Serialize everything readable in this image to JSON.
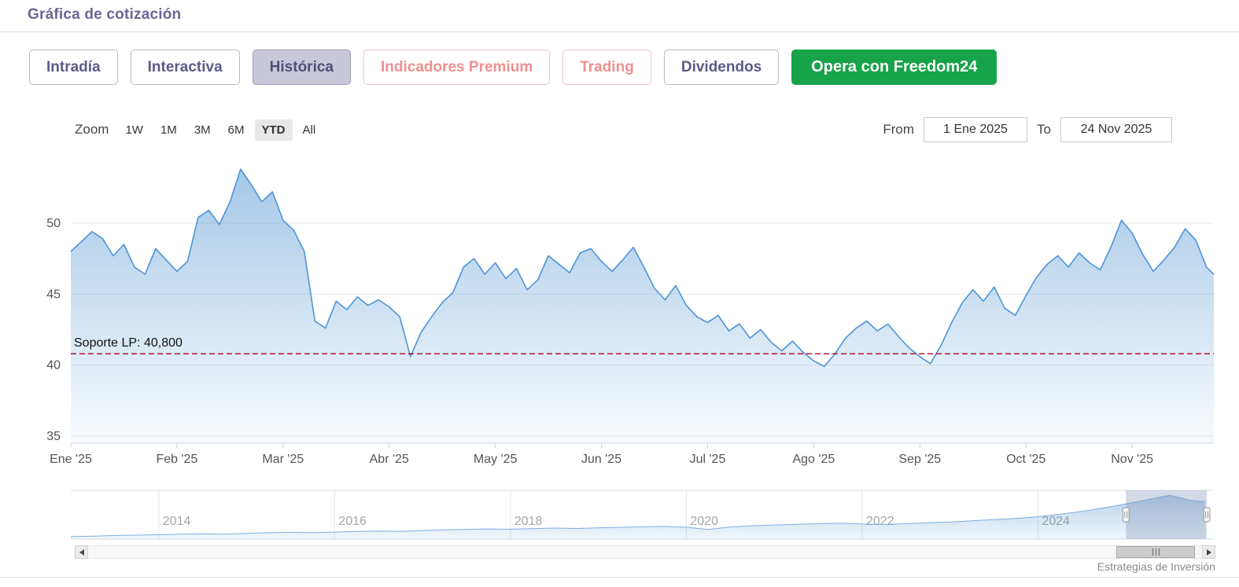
{
  "page": {
    "title": "Gráfica de cotización",
    "attribution": "Estrategias de Inversión"
  },
  "colors": {
    "accent_purple": "#5d5a88",
    "selected_tab_bg": "#c9c8d9",
    "premium_pink": "#ef8f8f",
    "cta_green": "#17a34a",
    "series_blue": "#4f93d8",
    "support_red": "#b00020"
  },
  "tabs": [
    {
      "label": "Intradía",
      "selected": false
    },
    {
      "label": "Interactiva",
      "selected": false
    },
    {
      "label": "Histórica",
      "selected": true
    },
    {
      "label": "Indicadores Premium",
      "selected": false
    },
    {
      "label": "Trading",
      "selected": false
    },
    {
      "label": "Dividendos",
      "selected": false
    },
    {
      "label": "Opera con Freedom24",
      "selected": false
    }
  ],
  "toolbar": {
    "zoom_label": "Zoom",
    "zoom_buttons": [
      "1W",
      "1M",
      "3M",
      "6M",
      "YTD",
      "All"
    ],
    "selected_zoom": "YTD",
    "from_label": "From",
    "from_value": "1 Ene 2025",
    "to_label": "To",
    "to_value": "24 Nov 2025"
  },
  "chart_data": {
    "type": "area",
    "title": "Gráfica de cotización",
    "xlabel": "",
    "ylabel": "",
    "grid": "horizontal",
    "legend": "none",
    "xlim": [
      0,
      10.77
    ],
    "ylim": [
      34.5,
      54.2
    ],
    "yticks": [
      35,
      40,
      45,
      50
    ],
    "xtick_positions": [
      0,
      1,
      2,
      3,
      4,
      5,
      6,
      7,
      8,
      9,
      10
    ],
    "xtick_labels": [
      "Ene '25",
      "Feb '25",
      "Mar '25",
      "Abr '25",
      "May '25",
      "Jun '25",
      "Jul '25",
      "Ago '25",
      "Sep '25",
      "Oct '25",
      "Nov '25"
    ],
    "x": [
      0,
      0.1,
      0.2,
      0.3,
      0.4,
      0.5,
      0.6,
      0.7,
      0.8,
      0.9,
      1,
      1.1,
      1.2,
      1.3,
      1.4,
      1.5,
      1.6,
      1.7,
      1.8,
      1.9,
      2,
      2.1,
      2.2,
      2.3,
      2.4,
      2.5,
      2.6,
      2.7,
      2.8,
      2.9,
      3,
      3.1,
      3.2,
      3.3,
      3.4,
      3.5,
      3.6,
      3.7,
      3.8,
      3.9,
      4,
      4.1,
      4.2,
      4.3,
      4.4,
      4.5,
      4.6,
      4.7,
      4.8,
      4.9,
      5,
      5.1,
      5.2,
      5.3,
      5.4,
      5.5,
      5.6,
      5.7,
      5.8,
      5.9,
      6,
      6.1,
      6.2,
      6.3,
      6.4,
      6.5,
      6.6,
      6.7,
      6.8,
      6.9,
      7,
      7.1,
      7.2,
      7.3,
      7.4,
      7.5,
      7.6,
      7.7,
      7.8,
      7.9,
      8,
      8.1,
      8.2,
      8.3,
      8.4,
      8.5,
      8.6,
      8.7,
      8.8,
      8.9,
      9,
      9.1,
      9.2,
      9.3,
      9.4,
      9.5,
      9.6,
      9.7,
      9.8,
      9.9,
      10,
      10.1,
      10.2,
      10.3,
      10.4,
      10.5,
      10.6,
      10.7,
      10.77
    ],
    "values": [
      48.0,
      48.7,
      49.4,
      48.9,
      47.7,
      48.5,
      46.9,
      46.4,
      48.2,
      47.4,
      46.6,
      47.3,
      50.4,
      50.9,
      49.9,
      51.5,
      53.8,
      52.7,
      51.5,
      52.2,
      50.2,
      49.5,
      48.0,
      43.1,
      42.6,
      44.5,
      43.9,
      44.8,
      44.2,
      44.6,
      44.1,
      43.4,
      40.6,
      42.3,
      43.4,
      44.4,
      45.1,
      46.9,
      47.5,
      46.4,
      47.2,
      46.1,
      46.8,
      45.3,
      46.0,
      47.7,
      47.1,
      46.5,
      47.9,
      48.2,
      47.3,
      46.6,
      47.4,
      48.3,
      46.9,
      45.4,
      44.6,
      45.6,
      44.2,
      43.4,
      43.0,
      43.5,
      42.4,
      42.9,
      41.9,
      42.5,
      41.6,
      41.0,
      41.7,
      40.9,
      40.3,
      39.9,
      40.8,
      41.9,
      42.6,
      43.1,
      42.4,
      42.9,
      42.0,
      41.2,
      40.6,
      40.1,
      41.4,
      43.0,
      44.4,
      45.3,
      44.5,
      45.5,
      44.0,
      43.5,
      44.9,
      46.2,
      47.1,
      47.7,
      46.9,
      47.9,
      47.2,
      46.7,
      48.3,
      50.2,
      49.3,
      47.8,
      46.6,
      47.4,
      48.3,
      49.6,
      48.8,
      46.9,
      46.4
    ],
    "support_line": {
      "label": "Soporte LP: 40,800",
      "value": 40.8
    },
    "navigator": {
      "type": "area",
      "xlim": [
        2013,
        2026
      ],
      "ylim": [
        8,
        58
      ],
      "xtick_positions": [
        2014,
        2016,
        2018,
        2020,
        2022,
        2024
      ],
      "xtick_labels": [
        "2014",
        "2016",
        "2018",
        "2020",
        "2022",
        "2024"
      ],
      "x": [
        2013,
        2013.25,
        2013.5,
        2013.75,
        2014,
        2014.25,
        2014.5,
        2014.75,
        2015,
        2015.25,
        2015.5,
        2015.75,
        2016,
        2016.25,
        2016.5,
        2016.75,
        2017,
        2017.25,
        2017.5,
        2017.75,
        2018,
        2018.25,
        2018.5,
        2018.75,
        2019,
        2019.25,
        2019.5,
        2019.75,
        2020,
        2020.25,
        2020.5,
        2020.75,
        2021,
        2021.25,
        2021.5,
        2021.75,
        2022,
        2022.25,
        2022.5,
        2022.75,
        2023,
        2023.25,
        2023.5,
        2023.75,
        2024,
        2024.25,
        2024.5,
        2024.75,
        2025,
        2025.25,
        2025.5,
        2025.75,
        2025.9
      ],
      "values": [
        10.5,
        11.0,
        11.6,
        12.0,
        12.4,
        13.0,
        13.4,
        13.1,
        13.8,
        14.5,
        14.9,
        14.6,
        15.2,
        15.8,
        16.3,
        16.0,
        16.6,
        17.4,
        18.0,
        18.4,
        18.1,
        18.8,
        19.3,
        18.9,
        19.5,
        20.1,
        20.6,
        21.0,
        20.2,
        17.8,
        20.4,
        21.6,
        22.4,
        23.2,
        23.8,
        24.3,
        23.6,
        22.9,
        23.9,
        24.8,
        25.6,
        26.8,
        27.9,
        29.2,
        31.0,
        33.5,
        36.5,
        40.0,
        44.0,
        48.5,
        53.0,
        47.5,
        46.5
      ],
      "selection": [
        2025.0,
        2025.92
      ]
    }
  }
}
